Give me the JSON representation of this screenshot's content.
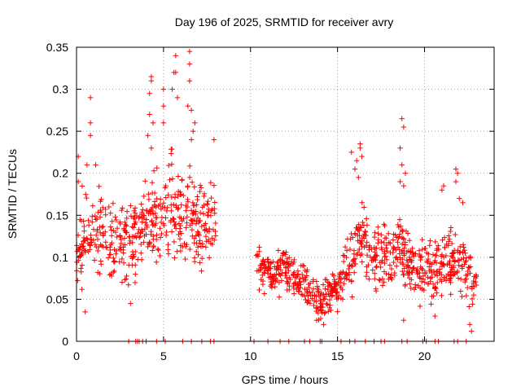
{
  "chart_data": {
    "type": "scatter",
    "title": "Day 196 of 2025, SRMTID for receiver avry",
    "xlabel": "GPS time / hours",
    "ylabel": "SRMTID / TECUs",
    "xlim": [
      0,
      24
    ],
    "ylim": [
      0,
      0.35
    ],
    "xticks": [
      0,
      5,
      10,
      15,
      20
    ],
    "yticks": [
      0,
      0.05,
      0.1,
      0.15,
      0.2,
      0.25,
      0.3,
      0.35
    ],
    "xtick_labels": [
      "0",
      "5",
      "10",
      "15",
      "20"
    ],
    "ytick_labels": [
      "0",
      "0.05",
      "0.1",
      "0.15",
      "0.2",
      "0.25",
      "0.3",
      "0.35"
    ],
    "grid": true,
    "marker": "+",
    "color": "#ff0000",
    "zero_points_x": [
      3.0,
      3.4,
      3.5,
      3.6,
      3.8,
      4.0,
      4.6,
      5.1,
      6.1,
      6.6,
      7.2,
      7.7,
      7.9,
      10.2,
      11.0,
      11.7,
      12.2,
      13.1,
      13.4,
      14.0,
      14.1,
      15.2,
      15.7,
      16.0,
      16.6,
      17.1,
      17.5,
      17.7,
      18.7,
      19.0,
      19.9,
      20.1,
      20.6,
      20.8,
      21.7,
      21.9,
      22.4
    ],
    "series": [
      {
        "name": "SRMTID",
        "segments": [
          {
            "x_start": 0.0,
            "x_end": 8.0,
            "center": [
              [
                0,
                0.1
              ],
              [
                0.6,
                0.14
              ],
              [
                1.5,
                0.12
              ],
              [
                2.5,
                0.12
              ],
              [
                3.0,
                0.11
              ],
              [
                4.0,
                0.14
              ],
              [
                5.0,
                0.15
              ],
              [
                5.5,
                0.17
              ],
              [
                6.0,
                0.14
              ],
              [
                6.5,
                0.15
              ],
              [
                7.0,
                0.14
              ],
              [
                8.0,
                0.15
              ]
            ],
            "spread": 0.045,
            "points_per_hour": 60
          },
          {
            "x_start": 10.3,
            "x_end": 15.3,
            "center": [
              [
                10.3,
                0.09
              ],
              [
                11.5,
                0.08
              ],
              [
                12.0,
                0.09
              ],
              [
                13.0,
                0.07
              ],
              [
                13.5,
                0.06
              ],
              [
                14.0,
                0.04
              ],
              [
                14.5,
                0.06
              ],
              [
                15.3,
                0.07
              ]
            ],
            "spread": 0.022,
            "points_per_hour": 60
          },
          {
            "x_start": 15.3,
            "x_end": 23.0,
            "center": [
              [
                15.3,
                0.08
              ],
              [
                16.0,
                0.11
              ],
              [
                16.5,
                0.13
              ],
              [
                17.0,
                0.1
              ],
              [
                18.0,
                0.1
              ],
              [
                18.5,
                0.12
              ],
              [
                19.0,
                0.09
              ],
              [
                20.0,
                0.08
              ],
              [
                21.0,
                0.09
              ],
              [
                22.0,
                0.1
              ],
              [
                22.5,
                0.08
              ],
              [
                23.0,
                0.07
              ]
            ],
            "spread": 0.035,
            "points_per_hour": 60
          }
        ],
        "peaks": [
          [
            0.1,
            0.22
          ],
          [
            0.1,
            0.19
          ],
          [
            0.8,
            0.29
          ],
          [
            0.8,
            0.26
          ],
          [
            0.8,
            0.245
          ],
          [
            0.6,
            0.21
          ],
          [
            1.1,
            0.21
          ],
          [
            0.5,
            0.035
          ],
          [
            4.3,
            0.315
          ],
          [
            4.3,
            0.31
          ],
          [
            4.2,
            0.295
          ],
          [
            4.2,
            0.27
          ],
          [
            4.4,
            0.26
          ],
          [
            4.1,
            0.245
          ],
          [
            4.3,
            0.23
          ],
          [
            5.0,
            0.3
          ],
          [
            5.0,
            0.28
          ],
          [
            5.0,
            0.26
          ],
          [
            5.7,
            0.34
          ],
          [
            5.6,
            0.32
          ],
          [
            5.7,
            0.32
          ],
          [
            5.5,
            0.3
          ],
          [
            5.8,
            0.29
          ],
          [
            6.5,
            0.345
          ],
          [
            6.5,
            0.33
          ],
          [
            6.5,
            0.31
          ],
          [
            6.4,
            0.28
          ],
          [
            6.6,
            0.275
          ],
          [
            6.8,
            0.26
          ],
          [
            6.7,
            0.25
          ],
          [
            6.6,
            0.24
          ],
          [
            7.9,
            0.24
          ],
          [
            16.3,
            0.235
          ],
          [
            16.3,
            0.23
          ],
          [
            16.1,
            0.215
          ],
          [
            15.8,
            0.225
          ],
          [
            16.0,
            0.205
          ],
          [
            16.4,
            0.22
          ],
          [
            16.2,
            0.195
          ],
          [
            18.7,
            0.265
          ],
          [
            18.8,
            0.255
          ],
          [
            18.6,
            0.23
          ],
          [
            18.7,
            0.21
          ],
          [
            18.9,
            0.2
          ],
          [
            18.6,
            0.19
          ],
          [
            18.8,
            0.185
          ],
          [
            21.8,
            0.205
          ],
          [
            21.9,
            0.2
          ],
          [
            21.8,
            0.19
          ],
          [
            21.1,
            0.185
          ],
          [
            21.0,
            0.18
          ],
          [
            22.0,
            0.17
          ],
          [
            22.2,
            0.165
          ],
          [
            13.8,
            0.025
          ],
          [
            14.2,
            0.02
          ],
          [
            22.7,
            0.012
          ],
          [
            22.6,
            0.02
          ],
          [
            18.8,
            0.025
          ],
          [
            20.6,
            0.03
          ],
          [
            3.1,
            0.045
          ]
        ]
      }
    ]
  }
}
